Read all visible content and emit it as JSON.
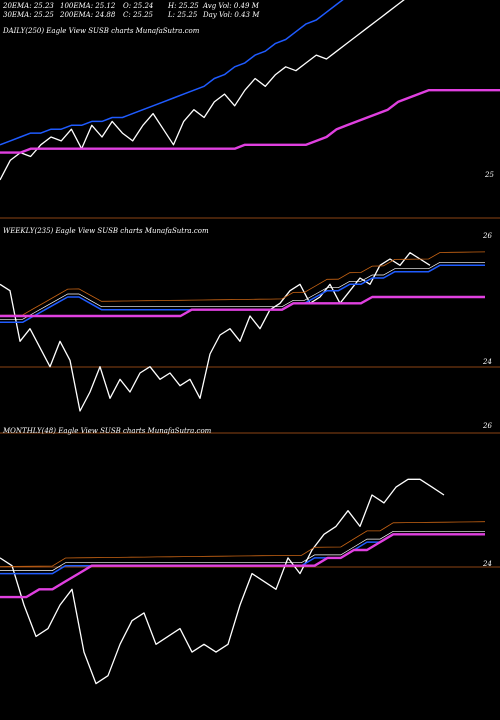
{
  "header": {
    "row1": [
      "20EMA: 25.23",
      "100EMA: 25.12",
      "O: 25.24",
      "H: 25.25",
      "Avg Vol: 0.49 M"
    ],
    "row2": [
      "30EMA: 25.25",
      "200EMA: 24.88",
      "C: 25.25",
      "L: 25.25",
      "Day Vol: 0.43 M"
    ]
  },
  "colors": {
    "background": "#000000",
    "price": "#ffffff",
    "ema_short": "#1f5bff",
    "ema_long": "#e040e0",
    "ema_mid": "#ffffff",
    "ema_extra": "#c86414",
    "grid": "#8b4513"
  },
  "chart_data": [
    {
      "type": "line",
      "title": "DAILY(250) Eagle View SUSB charts MunafaSutra.com",
      "tick_labels": [
        "25"
      ],
      "series": [
        {
          "values": [
            22.9,
            23.4,
            23.6,
            23.5,
            23.8,
            24.0,
            23.9,
            24.2,
            23.7,
            24.3,
            24.0,
            24.4,
            24.1,
            23.9,
            24.3,
            24.6,
            24.2,
            23.8,
            24.4,
            24.7,
            24.5,
            24.9,
            25.1,
            24.8,
            25.2,
            25.5,
            25.3,
            25.6,
            25.8,
            25.7,
            25.9,
            26.1,
            26.0,
            26.2,
            26.4,
            26.6,
            26.8,
            27.0,
            27.2,
            27.4,
            27.6,
            27.8,
            28.0,
            28.2,
            28.5,
            28.7,
            28.9,
            29.1,
            29.3,
            29.5
          ]
        },
        {
          "values": [
            23.8,
            23.9,
            24.0,
            24.1,
            24.1,
            24.2,
            24.2,
            24.3,
            24.3,
            24.4,
            24.4,
            24.5,
            24.5,
            24.6,
            24.7,
            24.8,
            24.9,
            25.0,
            25.1,
            25.2,
            25.3,
            25.5,
            25.6,
            25.8,
            25.9,
            26.1,
            26.2,
            26.4,
            26.5,
            26.7,
            26.9,
            27.0,
            27.2,
            27.4,
            27.6,
            27.8,
            28.0,
            28.2,
            28.4,
            28.6,
            28.8,
            29.0,
            29.2,
            29.4,
            29.6,
            29.8,
            30.0,
            30.2,
            30.4,
            30.6
          ]
        },
        {
          "values": [
            23.6,
            23.6,
            23.6,
            23.7,
            23.7,
            23.7,
            23.7,
            23.7,
            23.7,
            23.7,
            23.7,
            23.7,
            23.7,
            23.7,
            23.7,
            23.7,
            23.7,
            23.7,
            23.7,
            23.7,
            23.7,
            23.7,
            23.7,
            23.7,
            23.8,
            23.8,
            23.8,
            23.8,
            23.8,
            23.8,
            23.8,
            23.9,
            24.0,
            24.2,
            24.3,
            24.4,
            24.5,
            24.6,
            24.7,
            24.9,
            25.0,
            25.1,
            25.2,
            25.2,
            25.2,
            25.2,
            25.2,
            25.2,
            25.2,
            25.2
          ]
        }
      ]
    },
    {
      "type": "line",
      "title": "WEEKLY(235) Eagle View SUSB charts MunafaSutra.com",
      "tick_labels": [
        "26",
        "24"
      ],
      "series": [
        {
          "values": [
            25.3,
            25.2,
            24.4,
            24.6,
            24.3,
            24.0,
            24.4,
            24.1,
            23.3,
            23.6,
            24.0,
            23.5,
            23.8,
            23.6,
            23.9,
            24.0,
            23.8,
            23.9,
            23.7,
            23.8,
            23.5,
            24.2,
            24.5,
            24.6,
            24.4,
            24.8,
            24.6,
            24.9,
            25.0,
            25.2,
            25.3,
            25.0,
            25.1,
            25.3,
            25.0,
            25.2,
            25.4,
            25.3,
            25.6,
            25.7,
            25.6,
            25.8,
            25.7,
            25.6
          ],
          "x": [
            0,
            10,
            20,
            30,
            40,
            50,
            60,
            70,
            80,
            90,
            100,
            110,
            120,
            130,
            140,
            150,
            160,
            170,
            180,
            190,
            200,
            210,
            220,
            230,
            240,
            250,
            260,
            270,
            280,
            290,
            300,
            310,
            320,
            330,
            340,
            350,
            360,
            370,
            380,
            390,
            400,
            410,
            420,
            430
          ]
        },
        {
          "values": [
            24.7,
            24.7,
            24.7,
            24.8,
            24.9,
            25.0,
            25.1,
            25.1,
            25.0,
            24.9,
            24.9,
            24.9,
            24.9,
            24.9,
            24.9,
            24.9,
            24.9,
            24.9,
            24.9,
            24.9,
            24.9,
            24.9,
            24.9,
            24.9,
            24.9,
            24.9,
            25.0,
            25.0,
            25.1,
            25.2,
            25.2,
            25.3,
            25.3,
            25.4,
            25.4,
            25.5,
            25.5,
            25.5,
            25.5,
            25.6,
            25.6,
            25.6,
            25.6,
            25.6
          ]
        },
        {
          "values": [
            24.8,
            24.8,
            24.8,
            24.8,
            24.8,
            24.8,
            24.8,
            24.8,
            24.8,
            24.8,
            24.8,
            24.8,
            24.8,
            24.8,
            24.8,
            24.8,
            24.8,
            24.9,
            24.9,
            24.9,
            24.9,
            24.9,
            24.9,
            24.9,
            24.9,
            24.9,
            25.0,
            25.0,
            25.0,
            25.0,
            25.0,
            25.0,
            25.0,
            25.1,
            25.1,
            25.1,
            25.1,
            25.1,
            25.1,
            25.1,
            25.1,
            25.1,
            25.1,
            25.1
          ]
        }
      ]
    },
    {
      "type": "line",
      "title": "MONTHLY(48) Eagle View SUSB charts MunafaSutra.com",
      "tick_labels": [
        "26",
        "24"
      ],
      "series": [
        {
          "values": [
            25.0,
            24.9,
            24.4,
            24.0,
            24.1,
            24.4,
            24.6,
            23.8,
            23.4,
            23.5,
            23.9,
            24.2,
            24.3,
            23.9,
            24.0,
            24.1,
            23.8,
            23.9,
            23.8,
            23.9,
            24.4,
            24.8,
            24.7,
            24.6,
            25.0,
            24.8,
            25.1,
            25.3,
            25.4,
            25.6,
            25.4,
            25.8,
            25.7,
            25.9,
            26.0,
            26.0,
            25.9,
            25.8
          ],
          "x": [
            0,
            12,
            24,
            36,
            48,
            60,
            72,
            84,
            96,
            108,
            120,
            132,
            144,
            156,
            168,
            180,
            192,
            204,
            216,
            228,
            240,
            252,
            264,
            276,
            288,
            300,
            312,
            324,
            336,
            348,
            360,
            372,
            384,
            396,
            408,
            420,
            432,
            444
          ]
        },
        {
          "values": [
            24.8,
            24.8,
            24.8,
            24.8,
            24.8,
            24.9,
            24.9,
            24.9,
            24.9,
            24.9,
            24.9,
            24.9,
            24.9,
            24.9,
            24.9,
            24.9,
            24.9,
            24.9,
            24.9,
            24.9,
            24.9,
            24.9,
            24.9,
            24.9,
            25.0,
            25.0,
            25.0,
            25.1,
            25.2,
            25.2,
            25.3,
            25.3,
            25.3,
            25.3,
            25.3,
            25.3,
            25.3,
            25.3
          ]
        },
        {
          "values": [
            24.5,
            24.5,
            24.5,
            24.6,
            24.6,
            24.7,
            24.8,
            24.9,
            24.9,
            24.9,
            24.9,
            24.9,
            24.9,
            24.9,
            24.9,
            24.9,
            24.9,
            24.9,
            24.9,
            24.9,
            24.9,
            24.9,
            24.9,
            24.9,
            24.9,
            25.0,
            25.0,
            25.1,
            25.1,
            25.2,
            25.3,
            25.3,
            25.3,
            25.3,
            25.3,
            25.3,
            25.3,
            25.3
          ]
        }
      ]
    }
  ]
}
